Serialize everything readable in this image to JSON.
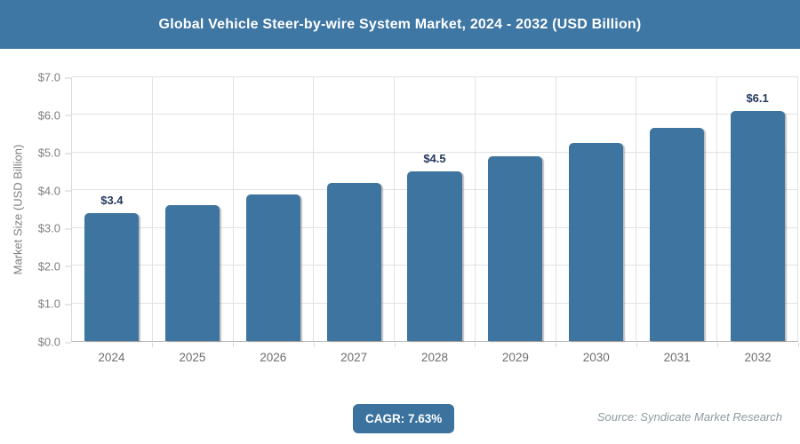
{
  "header": {
    "title": "Global Vehicle Steer-by-wire System Market, 2024 - 2032 (USD Billion)"
  },
  "chart_data": {
    "type": "bar",
    "title": "Global Vehicle Steer-by-wire System Market, 2024 - 2032 (USD Billion)",
    "categories": [
      "2024",
      "2025",
      "2026",
      "2027",
      "2028",
      "2029",
      "2030",
      "2031",
      "2032"
    ],
    "values": [
      3.4,
      3.6,
      3.9,
      4.2,
      4.5,
      4.9,
      5.25,
      5.65,
      6.1
    ],
    "data_labels": [
      "$3.4",
      "",
      "",
      "",
      "$4.5",
      "",
      "",
      "",
      "$6.1"
    ],
    "xlabel": "",
    "ylabel": "Market Size (USD Billion)",
    "ylim": [
      0,
      7
    ],
    "yticks": [
      "$0.0",
      "$1.0",
      "$2.0",
      "$3.0",
      "$4.0",
      "$5.0",
      "$6.0",
      "$7.0"
    ],
    "grid": true,
    "legend": "none"
  },
  "footer": {
    "cagr_label": "CAGR: 7.63%",
    "source": "Source: Syndicate Market Research"
  },
  "colors": {
    "header_bg": "#3e76a4",
    "bar": "#3d74a0",
    "badge_bg": "#3c739e",
    "data_label": "#24395e"
  }
}
